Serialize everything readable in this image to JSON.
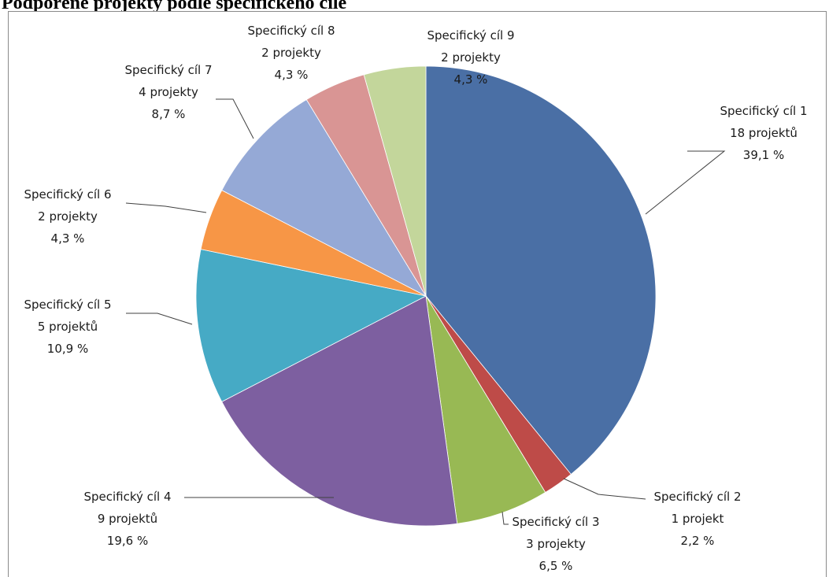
{
  "chart_data": {
    "type": "pie",
    "title": "Podpořené projekty podle specifického cíle",
    "slices": [
      {
        "name": "Specifický cíl 1",
        "count_label": "18 projektů",
        "pct_label": "39,1 %",
        "value": 18,
        "color": "#4a6fa5"
      },
      {
        "name": "Specifický cíl 2",
        "count_label": "1 projekt",
        "pct_label": "2,2 %",
        "value": 1,
        "color": "#be4b48"
      },
      {
        "name": "Specifický cíl 3",
        "count_label": "3 projekty",
        "pct_label": "6,5 %",
        "value": 3,
        "color": "#98b954"
      },
      {
        "name": "Specifický cíl 4",
        "count_label": "9 projektů",
        "pct_label": "19,6 %",
        "value": 9,
        "color": "#7d5fa0"
      },
      {
        "name": "Specifický cíl 5",
        "count_label": "5 projektů",
        "pct_label": "10,9 %",
        "value": 5,
        "color": "#46aac5"
      },
      {
        "name": "Specifický cíl 6",
        "count_label": "2 projekty",
        "pct_label": "4,3 %",
        "value": 2,
        "color": "#f79646"
      },
      {
        "name": "Specifický cíl 7",
        "count_label": "4 projekty",
        "pct_label": "8,7 %",
        "value": 4,
        "color": "#95a9d6"
      },
      {
        "name": "Specifický cíl 8",
        "count_label": "2 projekty",
        "pct_label": "4,3 %",
        "value": 2,
        "color": "#d99594"
      },
      {
        "name": "Specifický cíl 9",
        "count_label": "2 projekty",
        "pct_label": "4,3 %",
        "value": 2,
        "color": "#c3d69b"
      }
    ]
  }
}
